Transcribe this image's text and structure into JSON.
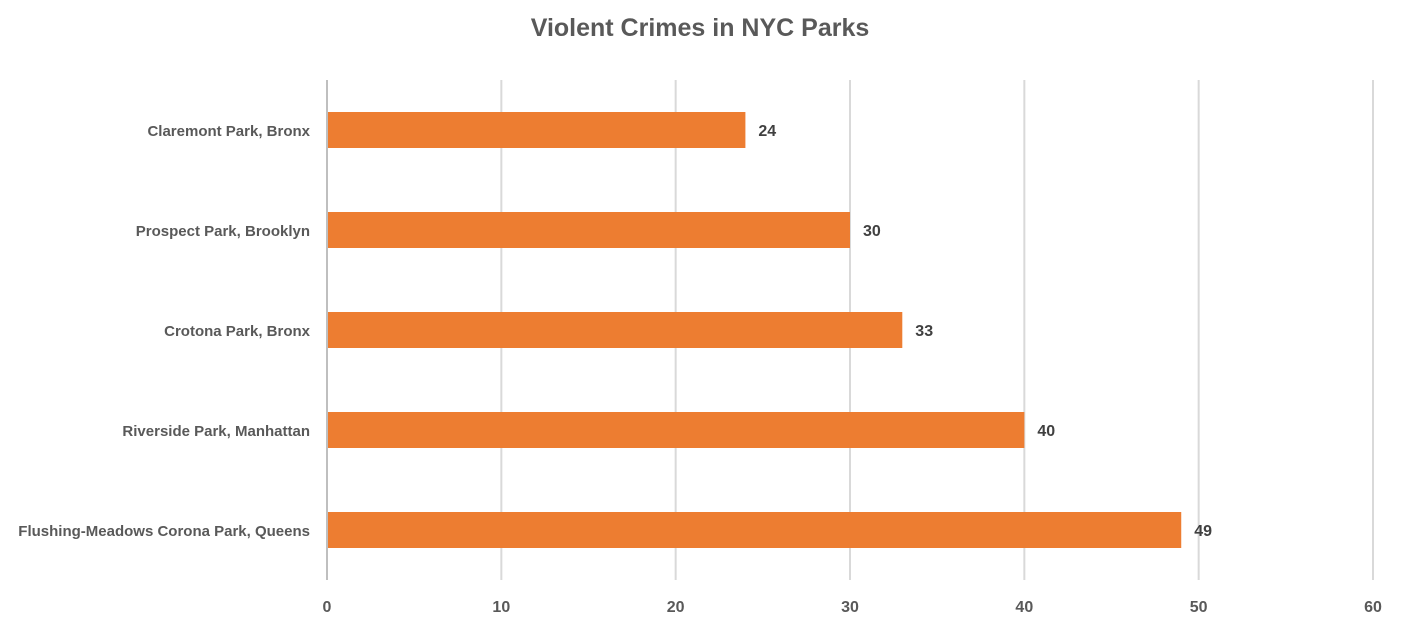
{
  "chart_data": {
    "type": "bar",
    "orientation": "horizontal",
    "title": "Violent Crimes in NYC Parks",
    "categories": [
      "Claremont Park, Bronx",
      "Prospect Park, Brooklyn",
      "Crotona Park, Bronx",
      "Riverside Park, Manhattan",
      "Flushing-Meadows Corona Park, Queens"
    ],
    "values": [
      24,
      30,
      33,
      40,
      49
    ],
    "xlim": [
      0,
      60
    ],
    "xticks": [
      0,
      10,
      20,
      30,
      40,
      50,
      60
    ],
    "grid": true,
    "data_labels": true,
    "bar_color": "#ed7d31"
  }
}
